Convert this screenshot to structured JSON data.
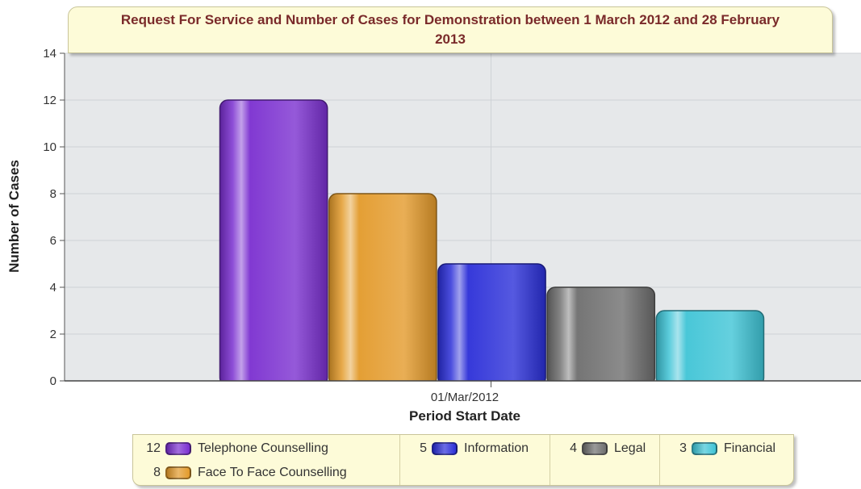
{
  "chart_data": {
    "type": "bar",
    "title": "Request For Service and Number of Cases for Demonstration between 1 March 2012 and 28 February 2013",
    "xlabel": "Period Start Date",
    "ylabel": "Number of Cases",
    "categories": [
      "01/Mar/2012"
    ],
    "ylim": [
      0,
      14
    ],
    "yticks": [
      "0",
      "2",
      "4",
      "6",
      "8",
      "10",
      "12",
      "14"
    ],
    "grid": true,
    "legend_position": "bottom",
    "series": [
      {
        "name": "Telephone Counselling",
        "values": [
          12
        ],
        "color": "#7a2fd0"
      },
      {
        "name": "Face To Face Counselling",
        "values": [
          8
        ],
        "color": "#e39a2a"
      },
      {
        "name": "Information",
        "values": [
          5
        ],
        "color": "#2b2fd8"
      },
      {
        "name": "Legal",
        "values": [
          4
        ],
        "color": "#6e6e6e"
      },
      {
        "name": "Financial",
        "values": [
          3
        ],
        "color": "#3fc4d6"
      }
    ]
  },
  "legend": {
    "items": [
      {
        "value": "12",
        "label": "Telephone Counselling"
      },
      {
        "value": "8",
        "label": "Face To Face Counselling"
      },
      {
        "value": "5",
        "label": "Information"
      },
      {
        "value": "4",
        "label": "Legal"
      },
      {
        "value": "3",
        "label": "Financial"
      }
    ]
  },
  "colors": {
    "plot_background": "#e6e8ea",
    "title_background": "#fdfbd8",
    "title_text": "#7a2a2a"
  }
}
